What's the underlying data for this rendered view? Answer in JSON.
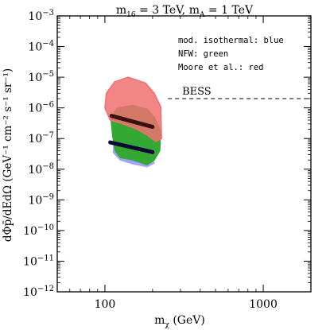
{
  "chart_data": {
    "type": "area",
    "title_parts": {
      "m16": "m",
      "m16_sub": "16",
      "m16_val": " = 3 TeV, ",
      "mA": "m",
      "mA_sub": "A",
      "mA_val": " = 1 TeV"
    },
    "xlabel_parts": {
      "main": "m",
      "sub": "χ",
      "unit": " (GeV)"
    },
    "ylabel": "dΦ³/dEdΩ (GeV⁻¹ cm⁻² s⁻¹ sr⁻¹)",
    "ylabel_display": "dΦp̄/dEdΩ (GeV⁻¹ cm⁻² s⁻¹ sr⁻¹)",
    "x_scale": "log",
    "y_scale": "log",
    "xlim": [
      50,
      2000
    ],
    "ylim": [
      1e-12,
      0.001
    ],
    "x_major_ticks": [
      {
        "value": 100,
        "label": "100"
      },
      {
        "value": 1000,
        "label": "1000"
      }
    ],
    "y_major_ticks": [
      {
        "value": 0.001,
        "base": "10",
        "exp": "−3"
      },
      {
        "value": 0.0001,
        "base": "10",
        "exp": "−4"
      },
      {
        "value": 1e-05,
        "base": "10",
        "exp": "−5"
      },
      {
        "value": 1e-06,
        "base": "10",
        "exp": "−6"
      },
      {
        "value": 1e-07,
        "base": "10",
        "exp": "−7"
      },
      {
        "value": 1e-08,
        "base": "10",
        "exp": "−8"
      },
      {
        "value": 1e-09,
        "base": "10",
        "exp": "−9"
      },
      {
        "value": 1e-10,
        "base": "10",
        "exp": "−10"
      },
      {
        "value": 1e-11,
        "base": "10",
        "exp": "−11"
      },
      {
        "value": 1e-12,
        "base": "10",
        "exp": "−12"
      }
    ],
    "legend": {
      "placement": "top-right",
      "entries": [
        "mod. isothermal: blue",
        "NFW: green",
        "Moore et al.: red"
      ]
    },
    "series": [
      {
        "name": "mod. isothermal",
        "color": "#a3a3ff",
        "kind": "band",
        "polygon": [
          [
            115,
            1.1e-07
          ],
          [
            150,
            5e-08
          ],
          [
            190,
            3.5e-08
          ],
          [
            205,
            1.6e-08
          ],
          [
            185,
            1.2e-08
          ],
          [
            150,
            1.5e-08
          ],
          [
            125,
            2e-08
          ],
          [
            113,
            3.5e-08
          ]
        ]
      },
      {
        "name": "NFW",
        "color": "#33a833",
        "kind": "band",
        "polygon": [
          [
            109,
            5e-07
          ],
          [
            120,
            1e-06
          ],
          [
            150,
            1.2e-06
          ],
          [
            185,
            9e-07
          ],
          [
            205,
            5e-07
          ],
          [
            225,
            1.8e-07
          ],
          [
            222,
            4e-08
          ],
          [
            205,
            2e-08
          ],
          [
            185,
            1.4e-08
          ],
          [
            150,
            2e-08
          ],
          [
            125,
            2.4e-08
          ],
          [
            116,
            4e-08
          ],
          [
            112,
            1.2e-07
          ]
        ]
      },
      {
        "name": "Moore et al.",
        "color": "#f07070",
        "kind": "band",
        "polygon": [
          [
            102,
            3e-06
          ],
          [
            115,
            7e-06
          ],
          [
            140,
            1e-05
          ],
          [
            180,
            6.5e-06
          ],
          [
            205,
            3e-06
          ],
          [
            225,
            1.1e-06
          ],
          [
            228,
            1e-07
          ],
          [
            210,
            8e-08
          ],
          [
            185,
            1.3e-07
          ],
          [
            160,
            2e-07
          ],
          [
            130,
            3e-07
          ],
          [
            108,
            4e-07
          ],
          [
            100,
            1e-06
          ]
        ]
      },
      {
        "name": "Moore et al. central",
        "color": "#3a1010",
        "kind": "line",
        "points": [
          [
            110,
            5.5e-07
          ],
          [
            200,
            2.4e-07
          ]
        ]
      },
      {
        "name": "mod. isothermal / NFW central",
        "color": "#0a0a35",
        "kind": "line",
        "points": [
          [
            108,
            7.5e-08
          ],
          [
            200,
            3.6e-08
          ]
        ]
      }
    ],
    "annotations": [
      {
        "text": "BESS",
        "kind": "dashed-hline",
        "y": 2e-06,
        "x_range": [
          250,
          2000
        ]
      }
    ]
  }
}
